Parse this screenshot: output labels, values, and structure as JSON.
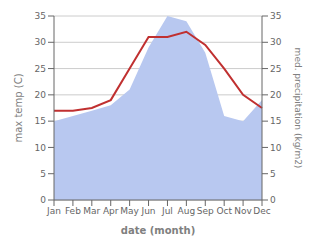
{
  "chart_data": {
    "type": "line",
    "categories": [
      "Jan",
      "Feb",
      "Mar",
      "Apr",
      "May",
      "Jun",
      "Jul",
      "Aug",
      "Sep",
      "Oct",
      "Nov",
      "Dec"
    ],
    "series": [
      {
        "type": "area",
        "color": "#b8c8f0",
        "axis": "y2",
        "values": [
          15,
          16,
          17,
          18,
          21,
          29,
          35,
          34,
          28,
          16,
          15,
          19
        ]
      },
      {
        "type": "line",
        "color": "#c03030",
        "values": [
          17,
          17,
          17.5,
          19,
          25,
          31,
          31,
          32,
          29.5,
          25,
          20,
          17.5
        ]
      }
    ],
    "xlabel": "date (month)",
    "ylabel": "max temp (C)",
    "y2label": "med. precipitation (kg/m2)",
    "ylim": [
      0,
      35
    ],
    "yticks": [
      0,
      5,
      10,
      15,
      20,
      25,
      30,
      35
    ],
    "y2lim": [
      0,
      35
    ],
    "y2ticks": [
      0,
      5,
      10,
      15,
      20,
      25,
      30,
      35
    ],
    "grid": true
  }
}
